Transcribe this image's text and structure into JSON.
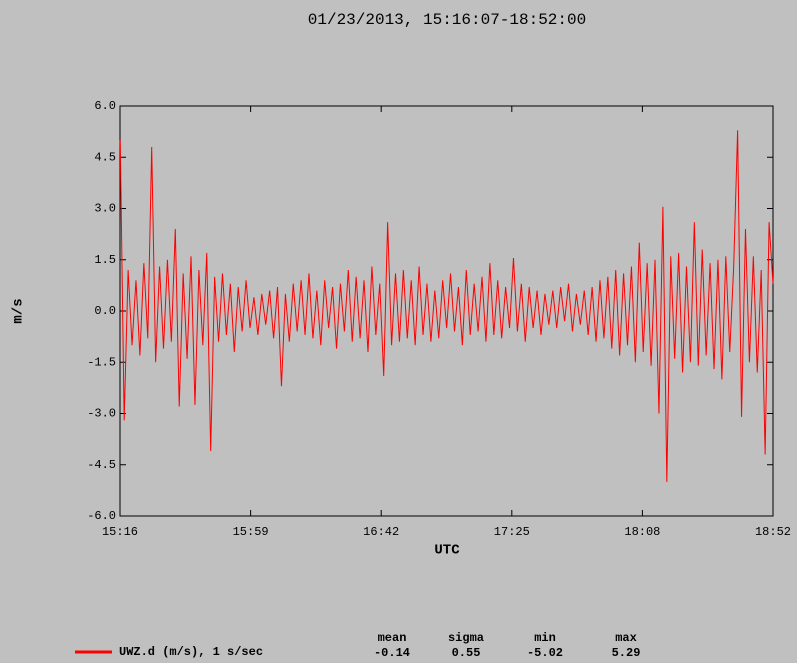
{
  "chart_data": {
    "type": "line",
    "title": "01/23/2013, 15:16:07-18:52:00",
    "xlabel": "UTC",
    "ylabel": "m/s",
    "xlim": [
      916.12,
      1132
    ],
    "ylim": [
      -6,
      6
    ],
    "xticks": [
      {
        "value": 916.12,
        "label": "15:16"
      },
      {
        "value": 959.3,
        "label": "15:59"
      },
      {
        "value": 1002.47,
        "label": "16:42"
      },
      {
        "value": 1045.65,
        "label": "17:25"
      },
      {
        "value": 1088.82,
        "label": "18:08"
      },
      {
        "value": 1132,
        "label": "18:52"
      }
    ],
    "yticks": [
      {
        "value": 6,
        "label": "6.0"
      },
      {
        "value": 4.5,
        "label": "4.5"
      },
      {
        "value": 3,
        "label": "3.0"
      },
      {
        "value": 1.5,
        "label": "1.5"
      },
      {
        "value": 0,
        "label": "0.0"
      },
      {
        "value": -1.5,
        "label": "-1.5"
      },
      {
        "value": -3,
        "label": "-3.0"
      },
      {
        "value": -4.5,
        "label": "-4.5"
      },
      {
        "value": -6,
        "label": "-6.0"
      }
    ],
    "x": [
      916.2,
      917.5,
      918.8,
      920.1,
      921.4,
      922.7,
      924.0,
      925.3,
      926.6,
      927.9,
      929.2,
      930.5,
      931.8,
      933.1,
      934.4,
      935.7,
      937.0,
      938.3,
      939.6,
      940.9,
      942.2,
      943.5,
      944.8,
      946.1,
      947.4,
      948.7,
      950.0,
      951.3,
      952.6,
      953.9,
      955.2,
      956.5,
      957.8,
      959.1,
      960.4,
      961.7,
      963.0,
      964.3,
      965.6,
      966.9,
      968.2,
      969.5,
      970.8,
      972.1,
      973.4,
      974.7,
      976.0,
      977.3,
      978.6,
      979.9,
      981.2,
      982.5,
      983.8,
      985.1,
      986.4,
      987.7,
      989.0,
      990.3,
      991.6,
      992.9,
      994.2,
      995.5,
      996.8,
      998.1,
      999.4,
      1000.7,
      1002.0,
      1003.3,
      1004.6,
      1005.9,
      1007.2,
      1008.5,
      1009.8,
      1011.1,
      1012.4,
      1013.7,
      1015.0,
      1016.3,
      1017.6,
      1018.9,
      1020.2,
      1021.5,
      1022.8,
      1024.1,
      1025.4,
      1026.7,
      1028.0,
      1029.3,
      1030.6,
      1031.9,
      1033.2,
      1034.5,
      1035.8,
      1037.1,
      1038.4,
      1039.7,
      1041.0,
      1042.3,
      1043.6,
      1044.9,
      1046.2,
      1047.5,
      1048.8,
      1050.1,
      1051.4,
      1052.7,
      1054.0,
      1055.3,
      1056.6,
      1057.9,
      1059.2,
      1060.5,
      1061.8,
      1063.1,
      1064.4,
      1065.7,
      1067.0,
      1068.3,
      1069.6,
      1070.9,
      1072.2,
      1073.5,
      1074.8,
      1076.1,
      1077.4,
      1078.7,
      1080.0,
      1081.3,
      1082.6,
      1083.9,
      1085.2,
      1086.5,
      1087.8,
      1089.1,
      1090.4,
      1091.7,
      1093.0,
      1094.3,
      1095.6,
      1096.9,
      1098.2,
      1099.5,
      1100.8,
      1102.1,
      1103.4,
      1104.7,
      1106.0,
      1107.3,
      1108.6,
      1109.9,
      1111.2,
      1112.5,
      1113.8,
      1115.1,
      1116.4,
      1117.7,
      1119.0,
      1120.3,
      1121.6,
      1122.9,
      1124.2,
      1125.5,
      1126.8,
      1128.1,
      1129.4,
      1130.7,
      1132.0
    ],
    "series": [
      {
        "name": "UWZ.d (m/s), 1 s/sec",
        "color": "#ff0000",
        "values": [
          5.0,
          -3.2,
          1.2,
          -1.0,
          0.9,
          -1.3,
          1.4,
          -0.8,
          4.8,
          -1.5,
          1.3,
          -1.1,
          1.5,
          -0.9,
          2.4,
          -2.8,
          1.1,
          -1.4,
          1.6,
          -2.75,
          1.2,
          -1.0,
          1.7,
          -4.1,
          1.0,
          -0.9,
          1.1,
          -0.7,
          0.8,
          -1.2,
          0.7,
          -0.6,
          0.9,
          -0.5,
          0.4,
          -0.7,
          0.5,
          -0.4,
          0.6,
          -0.8,
          0.7,
          -2.2,
          0.5,
          -0.9,
          0.8,
          -0.6,
          0.9,
          -0.7,
          1.1,
          -0.8,
          0.6,
          -1.0,
          0.9,
          -0.5,
          0.7,
          -1.1,
          0.8,
          -0.6,
          1.2,
          -0.9,
          1.0,
          -0.8,
          0.9,
          -1.2,
          1.3,
          -0.7,
          0.8,
          -1.9,
          2.6,
          -1.0,
          1.1,
          -0.9,
          1.2,
          -0.8,
          0.9,
          -1.0,
          1.3,
          -0.7,
          0.8,
          -0.9,
          0.6,
          -0.8,
          0.9,
          -0.5,
          1.1,
          -0.6,
          0.7,
          -1.0,
          1.2,
          -0.7,
          0.8,
          -0.6,
          1.0,
          -0.9,
          1.4,
          -0.7,
          0.9,
          -0.8,
          0.7,
          -0.5,
          1.55,
          -0.6,
          0.8,
          -0.9,
          0.7,
          -0.5,
          0.6,
          -0.7,
          0.5,
          -0.4,
          0.6,
          -0.5,
          0.7,
          -0.3,
          0.8,
          -0.6,
          0.5,
          -0.4,
          0.6,
          -0.7,
          0.7,
          -0.9,
          0.9,
          -0.8,
          1.0,
          -1.1,
          1.2,
          -1.3,
          1.1,
          -1.0,
          1.3,
          -1.5,
          2.0,
          -1.2,
          1.4,
          -1.6,
          1.5,
          -3.0,
          3.05,
          -5.0,
          1.6,
          -1.4,
          1.7,
          -1.8,
          1.3,
          -1.5,
          2.6,
          -1.6,
          1.8,
          -1.3,
          1.4,
          -1.7,
          1.5,
          -2.0,
          1.6,
          -1.2,
          1.3,
          5.29,
          -3.1,
          2.4,
          -1.5,
          1.6,
          -1.8,
          1.2,
          -4.2,
          2.6,
          0.8
        ]
      }
    ],
    "stats_headers": [
      "mean",
      "sigma",
      "min",
      "max"
    ],
    "stats_values": [
      -0.14,
      0.55,
      -5.02,
      5.29
    ]
  }
}
